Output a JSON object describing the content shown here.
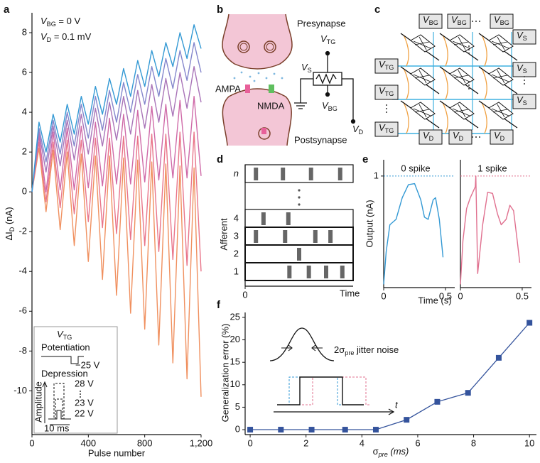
{
  "panel_letters": [
    "a",
    "b",
    "c",
    "d",
    "e",
    "f"
  ],
  "chart_data": [
    {
      "type": "line",
      "x": [
        0,
        50,
        100,
        150,
        200,
        250,
        300,
        350,
        400,
        450,
        500,
        550,
        600,
        650,
        700,
        750,
        800,
        850,
        900,
        950,
        1000,
        1050,
        1100,
        1150,
        1200
      ],
      "series": [
        {
          "name": "28 V",
          "color": "#f0905f",
          "values": [
            0,
            2.2,
            -1.0,
            2.1,
            -1.9,
            2.0,
            -2.7,
            1.9,
            -3.5,
            1.8,
            -4.4,
            1.8,
            -5.2,
            1.7,
            -6.1,
            1.6,
            -6.9,
            1.5,
            -7.7,
            1.4,
            -8.6,
            1.3,
            -9.4,
            1.2,
            -10.3
          ]
        },
        {
          "color": "#e9758a",
          "values": [
            0,
            2.5,
            -0.5,
            2.5,
            -0.8,
            2.6,
            -1.1,
            2.6,
            -1.5,
            2.7,
            -1.8,
            2.7,
            -2.1,
            2.8,
            -2.4,
            2.8,
            -2.7,
            2.9,
            -3.0,
            2.9,
            -3.4,
            3.0,
            -3.7,
            3.0,
            -4.0
          ]
        },
        {
          "color": "#cf6aa8",
          "values": [
            0,
            2.8,
            0,
            3.0,
            0.1,
            3.2,
            0.1,
            3.3,
            0.2,
            3.5,
            0.3,
            3.7,
            0.4,
            3.9,
            0.4,
            4.1,
            0.5,
            4.3,
            0.6,
            4.4,
            0.7,
            4.6,
            0.7,
            4.8,
            0.8
          ]
        },
        {
          "color": "#a974b8",
          "values": [
            0,
            3.0,
            1.0,
            3.3,
            1.3,
            3.6,
            1.6,
            3.9,
            1.9,
            4.2,
            2.3,
            4.5,
            2.6,
            4.8,
            2.9,
            5.1,
            3.2,
            5.4,
            3.5,
            5.7,
            3.8,
            6.0,
            4.2,
            6.3,
            4.5
          ]
        },
        {
          "name": "23 V",
          "color": "#8486cc",
          "values": [
            0,
            3.2,
            1.5,
            3.6,
            1.9,
            4.0,
            2.3,
            4.4,
            2.7,
            4.8,
            3.1,
            5.1,
            3.5,
            5.5,
            4.0,
            5.9,
            4.4,
            6.3,
            4.8,
            6.7,
            5.2,
            7.1,
            5.6,
            7.5,
            6.0
          ]
        },
        {
          "name": "22 V",
          "color": "#3399d4",
          "values": [
            0,
            3.5,
            2.0,
            3.9,
            2.5,
            4.4,
            2.9,
            4.8,
            3.4,
            5.3,
            3.9,
            5.7,
            4.4,
            6.2,
            4.8,
            6.6,
            5.3,
            7.1,
            5.8,
            7.5,
            6.3,
            8.0,
            6.7,
            8.4,
            7.2
          ]
        }
      ],
      "xlim": [
        0,
        1200
      ],
      "ylim": [
        -12.2,
        9
      ],
      "xticks": [
        0,
        400,
        800,
        {
          "value": 1200,
          "label": "1,200"
        }
      ],
      "yticks": [
        -10,
        -8,
        -6,
        -4,
        -2,
        0,
        2,
        4,
        6,
        8
      ],
      "xlabel": "Pulse number",
      "ylabel": {
        "text": "ΔI",
        "sub": "D",
        "after": " (nA)"
      },
      "annotations": [
        {
          "text": "V",
          "sub": "BG",
          "after": " = 0 V"
        },
        {
          "text": "V",
          "sub": "D",
          "after": " = 0.1 mV"
        }
      ],
      "inset": {
        "title": {
          "text": "V",
          "sub": "TG"
        },
        "potentiation": "Potentiation",
        "potentiation_level": "−25 V",
        "depression": "Depression",
        "amplitude": "Amplitude",
        "duration": "10 ms"
      }
    },
    {
      "type": "raster",
      "rows": [
        {
          "label": "n",
          "spikes": [
            0.1,
            0.35,
            0.61,
            0.88
          ]
        },
        {
          "label": "4",
          "spikes": [
            0.17,
            0.4
          ]
        },
        {
          "label": "3",
          "spikes": [
            0.1,
            0.37,
            0.65,
            0.79
          ]
        },
        {
          "label": "2",
          "spikes": [
            0.5
          ]
        },
        {
          "label": "1",
          "spikes": [
            0.41,
            0.59,
            0.75,
            0.9
          ]
        }
      ],
      "xlim": [
        0,
        1
      ],
      "xticks": [
        0
      ],
      "xlabel": "Time",
      "ylabel": "Afferent"
    },
    {
      "type": "line",
      "title": "0 spike",
      "color": "#3399d4",
      "x": [
        0,
        0.02,
        0.05,
        0.1,
        0.15,
        0.2,
        0.25,
        0.3,
        0.33,
        0.36,
        0.4,
        0.42,
        0.45,
        0.48
      ],
      "values": [
        0,
        0.3,
        0.55,
        0.6,
        0.8,
        0.92,
        0.93,
        0.78,
        0.62,
        0.6,
        0.78,
        0.8,
        0.6,
        0.25
      ],
      "threshold": 1,
      "xlim": [
        0,
        0.575
      ],
      "ylim": [
        -0.03,
        1.15
      ],
      "xticks": [
        0,
        0.5
      ],
      "yticks": [
        1
      ],
      "xlabel": "Time (s)",
      "ylabel": "Output (nA)"
    },
    {
      "type": "line",
      "title": "1 spike",
      "color": "#e0708f",
      "x": [
        0,
        0.02,
        0.05,
        0.08,
        0.12,
        0.125,
        0.14,
        0.18,
        0.22,
        0.26,
        0.3,
        0.33,
        0.37,
        0.4,
        0.43,
        0.46,
        0.48
      ],
      "values": [
        0,
        0.4,
        0.7,
        0.8,
        0.9,
        1.0,
        0.1,
        0.55,
        0.85,
        0.84,
        0.65,
        0.55,
        0.6,
        0.73,
        0.68,
        0.4,
        0.2
      ],
      "threshold": 1,
      "xlim": [
        0,
        0.575
      ],
      "ylim": [
        -0.03,
        1.15
      ],
      "xticks": [
        0,
        0.5
      ]
    },
    {
      "type": "line-markers",
      "color": "#34539c",
      "x": [
        0,
        1.1,
        2.2,
        3.4,
        4.5,
        5.6,
        6.7,
        7.8,
        8.9,
        10
      ],
      "values": [
        0,
        0,
        0,
        0,
        0,
        2.2,
        6.2,
        8.2,
        16,
        23.8
      ],
      "xlim": [
        -0.18,
        10.25
      ],
      "ylim": [
        -1.1,
        26.1
      ],
      "xticks": [
        0,
        2,
        4,
        6,
        8,
        10
      ],
      "yticks": [
        0,
        5,
        10,
        15,
        20,
        25
      ],
      "xlabel": {
        "text": "σ",
        "sub": "pre",
        "after": " (ms)"
      },
      "ylabel": "Generalization error (%)",
      "inset": {
        "jitter": {
          "text": "2σ",
          "sub": "pre",
          "after": " jitter noise"
        },
        "axis": "t"
      }
    }
  ],
  "synapse": {
    "presynapse": "Presynapse",
    "postsynapse": "Postsynapse",
    "ampa": "AMPA",
    "nmda": "NMDA",
    "v_tg": {
      "text": "V",
      "sub": "TG"
    },
    "v_s": {
      "text": "V",
      "sub": "S"
    },
    "v_bg": {
      "text": "V",
      "sub": "BG"
    },
    "v_d": {
      "text": "V",
      "sub": "D"
    }
  },
  "crossbar": {
    "bg": [
      {
        "text": "V",
        "sub": "BG"
      },
      {
        "text": "V",
        "sub": "BG"
      },
      {
        "text": "V",
        "sub": "BG"
      }
    ],
    "s": [
      {
        "text": "V",
        "sub": "S"
      },
      {
        "text": "V",
        "sub": "S"
      },
      {
        "text": "V",
        "sub": "S"
      }
    ],
    "tg": [
      {
        "text": "V",
        "sub": "TG"
      },
      {
        "text": "V",
        "sub": "TG"
      },
      {
        "text": "V",
        "sub": "TG"
      }
    ],
    "d": [
      {
        "text": "V",
        "sub": "D"
      },
      {
        "text": "V",
        "sub": "D"
      },
      {
        "text": "V",
        "sub": "D"
      }
    ]
  }
}
